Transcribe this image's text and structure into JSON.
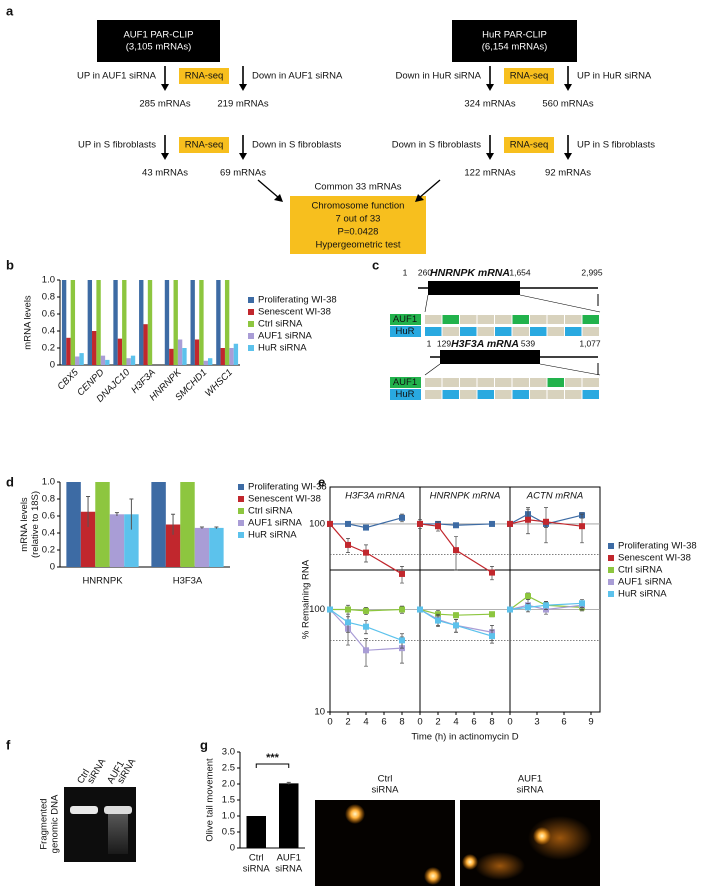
{
  "panel_labels": [
    "a",
    "b",
    "c",
    "d",
    "e",
    "f",
    "g"
  ],
  "panel_a": {
    "sources": [
      {
        "name": "AUF1 PAR-CLIP",
        "count": "(3,105 mRNAs)"
      },
      {
        "name": "HuR PAR-CLIP",
        "count": "(6,154 mRNAs)"
      }
    ],
    "steps": [
      {
        "left": "UP in AUF1 siRNA",
        "method": "RNA-seq",
        "right": "Down in AUF1 siRNA",
        "counts": [
          "285 mRNAs",
          "219 mRNAs"
        ]
      },
      {
        "left": "Down in HuR siRNA",
        "method": "RNA-seq",
        "right": "UP in HuR siRNA",
        "counts": [
          "324 mRNAs",
          "560 mRNAs"
        ]
      },
      {
        "left": "UP in S fibroblasts",
        "method": "RNA-seq",
        "right": "Down in S fibroblasts",
        "counts": [
          "43 mRNAs",
          "69 mRNAs"
        ]
      },
      {
        "left": "Down in S fibroblasts",
        "method": "RNA-seq",
        "right": "UP in S fibroblasts",
        "counts": [
          "122 mRNAs",
          "92 mRNAs"
        ]
      }
    ],
    "common": "Common 33 mRNAs",
    "result": [
      "Chromosome function",
      "7 out of 33",
      "P=0.0428",
      "Hypergeometric test"
    ]
  },
  "panel_c": {
    "transcripts": [
      {
        "name": "HNRNPK mRNA",
        "positions": [
          "1",
          "260",
          "1,654",
          "2,995"
        ]
      },
      {
        "name": "H3F3A mRNA",
        "positions": [
          "1",
          "129",
          "539",
          "1,077"
        ]
      }
    ],
    "tracks": [
      "AUF1",
      "HuR"
    ]
  },
  "panel_f": {
    "lanes": [
      [
        "Ctrl",
        "siRNA"
      ],
      [
        "AUF1",
        "siRNA"
      ]
    ],
    "ylabel": [
      "Fragmented",
      "genomic DNA"
    ]
  },
  "panel_g_images": [
    [
      "Ctrl",
      "siRNA"
    ],
    [
      "AUF1",
      "siRNA"
    ]
  ],
  "chart_data": [
    {
      "type": "bar",
      "ylabel": "mRNA levels",
      "categories": [
        "CBX5",
        "CENPD",
        "DNAJC10",
        "H3F3A",
        "HNRNPK",
        "SMCHD1",
        "WHSC1"
      ],
      "ylim": [
        0,
        1
      ],
      "yticks": [
        0,
        0.2,
        0.4,
        0.6,
        0.8,
        {
          "value": 1,
          "label": "1.0"
        }
      ],
      "series": [
        {
          "name": "Proliferating WI-38",
          "color": "#3d6ba4",
          "values": [
            1,
            1,
            1,
            1,
            1,
            1,
            1
          ]
        },
        {
          "name": "Senescent WI-38",
          "color": "#c1272d",
          "values": [
            0.32,
            0.4,
            0.31,
            0.48,
            0.19,
            0.3,
            0.2
          ]
        },
        {
          "name": "Ctrl siRNA",
          "color": "#8dc63f",
          "values": [
            1,
            1,
            1,
            1,
            1,
            1,
            1
          ]
        },
        {
          "name": "AUF1 siRNA",
          "color": "#a99dd6",
          "values": [
            0.1,
            0.11,
            0.08,
            0,
            0.3,
            0.05,
            0.2
          ]
        },
        {
          "name": "HuR siRNA",
          "color": "#5cc2ec",
          "values": [
            0.14,
            0.06,
            0.11,
            0,
            0.2,
            0.08,
            0.25
          ]
        }
      ]
    },
    {
      "type": "bar",
      "ylabel": [
        "mRNA levels",
        "(relative to 18S)"
      ],
      "categories": [
        "HNRNPK",
        "H3F3A"
      ],
      "ylim": [
        0,
        1
      ],
      "yticks": [
        0,
        0.2,
        0.4,
        0.6,
        0.8,
        {
          "value": 1,
          "label": "1.0"
        }
      ],
      "series": [
        {
          "name": "Proliferating WI-38",
          "color": "#3d6ba4",
          "values": [
            1,
            1
          ]
        },
        {
          "name": "Senescent WI-38",
          "color": "#c1272d",
          "values": [
            0.65,
            0.5
          ],
          "errors": [
            0.18,
            0.12
          ]
        },
        {
          "name": "Ctrl siRNA",
          "color": "#8dc63f",
          "values": [
            1,
            1
          ]
        },
        {
          "name": "AUF1 siRNA",
          "color": "#a99dd6",
          "values": [
            0.62,
            0.46
          ],
          "errors": [
            0.02,
            0.01
          ]
        },
        {
          "name": "HuR siRNA",
          "color": "#5cc2ec",
          "values": [
            0.62,
            0.46
          ],
          "errors": [
            0.18,
            0.01
          ]
        }
      ]
    },
    {
      "type": "line",
      "log_y": true,
      "ylabel": "% Remaining RNA",
      "xlabel": "Time (h) in actinomycin D",
      "panels": [
        {
          "title": "H3F3A mRNA",
          "xlim": [
            0,
            10
          ],
          "xticks": [
            0,
            2,
            4,
            6,
            8
          ]
        },
        {
          "title": "HNRNPK mRNA",
          "xlim": [
            0,
            10
          ],
          "xticks": [
            0,
            2,
            4,
            6,
            8
          ]
        },
        {
          "title": "ACTN mRNA",
          "xlim": [
            0,
            10
          ],
          "xticks": [
            0,
            3,
            6,
            9
          ]
        }
      ],
      "x": [
        0,
        2,
        4,
        8
      ],
      "rows": [
        {
          "ylim": [
            35,
            232
          ],
          "yticks": [
            100
          ],
          "hlines": [
            100,
            50
          ],
          "hline_styles": [
            "solid",
            "dotted"
          ],
          "series": [
            {
              "name": "Proliferating WI-38",
              "color": "#3d6ba4",
              "values": [
                [
                  100,
                  100,
                  92,
                  115
                ],
                [
                  100,
                  100,
                  97,
                  100
                ],
                [
                  100,
                  125,
                  100,
                  122
                ]
              ],
              "errors": [
                [
                  4,
                  3,
                  4,
                  10
                ],
                [
                  5,
                  5,
                  5,
                  5
                ],
                [
                  5,
                  20,
                  8,
                  8
                ]
              ]
            },
            {
              "name": "Senescent WI-38",
              "color": "#c1272d",
              "values": [
                [
                  100,
                  62,
                  52,
                  32
                ],
                [
                  100,
                  95,
                  55,
                  33
                ],
                [
                  100,
                  110,
                  105,
                  95
                ]
              ],
              "errors": [
                [
                  5,
                  10,
                  10,
                  6
                ],
                [
                  10,
                  10,
                  20,
                  5
                ],
                [
                  5,
                  30,
                  40,
                  30
                ]
              ]
            }
          ]
        },
        {
          "ylim": [
            10,
            243
          ],
          "yticks": [
            10,
            100
          ],
          "hlines": [
            100,
            50
          ],
          "hline_styles": [
            "solid",
            "dotted"
          ],
          "series": [
            {
              "name": "Ctrl siRNA",
              "color": "#8dc63f",
              "values": [
                [
                  100,
                  100,
                  97,
                  100
                ],
                [
                  100,
                  90,
                  88,
                  90
                ],
                [
                  100,
                  135,
                  110,
                  105
                ]
              ],
              "errors": [
                [
                  5,
                  10,
                  8,
                  8
                ],
                [
                  5,
                  8,
                  5,
                  5
                ],
                [
                  5,
                  10,
                  8,
                  8
                ]
              ]
            },
            {
              "name": "AUF1 siRNA",
              "color": "#a99dd6",
              "values": [
                [
                  100,
                  65,
                  40,
                  42
                ],
                [
                  100,
                  80,
                  70,
                  60
                ],
                [
                  100,
                  110,
                  100,
                  110
                ]
              ],
              "errors": [
                [
                  5,
                  20,
                  12,
                  12
                ],
                [
                  5,
                  10,
                  10,
                  10
                ],
                [
                  5,
                  15,
                  10,
                  10
                ]
              ]
            },
            {
              "name": "HuR siRNA",
              "color": "#5cc2ec",
              "values": [
                [
                  100,
                  75,
                  68,
                  50
                ],
                [
                  100,
                  78,
                  70,
                  55
                ],
                [
                  100,
                  105,
                  110,
                  115
                ]
              ],
              "errors": [
                [
                  5,
                  15,
                  10,
                  8
                ],
                [
                  5,
                  10,
                  10,
                  8
                ],
                [
                  5,
                  10,
                  10,
                  10
                ]
              ]
            }
          ]
        }
      ]
    },
    {
      "type": "bar",
      "ylabel": "Olive tail movement",
      "significance": "***",
      "categories": [
        [
          "Ctrl",
          "siRNA"
        ],
        [
          "AUF1",
          "siRNA"
        ]
      ],
      "ylim": [
        0,
        3
      ],
      "yticks": [
        0,
        0.5,
        {
          "value": 1,
          "label": "1.0"
        },
        1.5,
        {
          "value": 2,
          "label": "2.0"
        },
        2.5,
        {
          "value": 3,
          "label": "3.0"
        }
      ],
      "color": "#000000",
      "values": [
        1,
        2.02
      ],
      "errors": [
        null,
        0.03
      ]
    }
  ]
}
